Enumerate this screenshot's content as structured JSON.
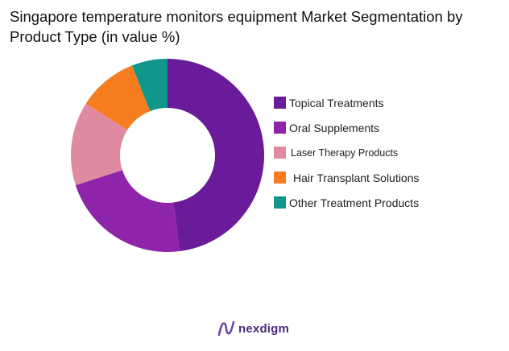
{
  "chart_data": {
    "type": "pie",
    "title": "Singapore temperature monitors equipment Market Segmentation by Product Type (in value %)",
    "donut": true,
    "categories": [
      "Topical Treatments",
      "Oral Supplements",
      "Laser Therapy Products",
      "Hair Transplant Solutions",
      "Other Treatment Products"
    ],
    "values": [
      48,
      22,
      14,
      10,
      6
    ],
    "colors": [
      "#6a1b9a",
      "#8e24aa",
      "#e08aa2",
      "#f57c1f",
      "#10968a"
    ],
    "legend_position": "right"
  },
  "brand": {
    "name": "nexdigm",
    "color": "#4a2a7a"
  }
}
